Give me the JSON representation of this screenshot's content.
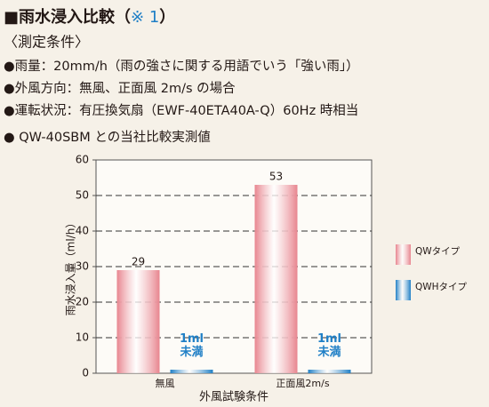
{
  "header": {
    "title": "■雨水浸入比較（",
    "title_ref": "※ 1",
    "title_close": "）",
    "subtitle": "〈測定条件〉",
    "conditions": [
      "●雨量：20mm/h（雨の強さに関する用語でいう「強い雨」）",
      "●外風方向：無風、正面風 2m/s の場合",
      "●運転状況：有圧換気扇（EWF-40ETA40A-Q）60Hz 時相当",
      "● QW-40SBM との当社比較実測値"
    ]
  },
  "chart_data": {
    "type": "bar",
    "x_label": "外風試験条件",
    "y_label": "雨水浸入量（ml/h）",
    "categories": [
      "無風",
      "正面風2m/s"
    ],
    "series": [
      {
        "name": "QWタイプ",
        "color": "#e8858f",
        "values": [
          29,
          53
        ]
      },
      {
        "name": "QWHタイプ",
        "color": "#1f7fc6",
        "values": [
          1,
          1
        ],
        "value_labels": [
          "1ml 未満",
          "1ml 未満"
        ]
      }
    ],
    "ylim": [
      0,
      60
    ],
    "yticks": [
      0,
      10,
      20,
      30,
      40,
      50,
      60
    ],
    "grid": true
  }
}
